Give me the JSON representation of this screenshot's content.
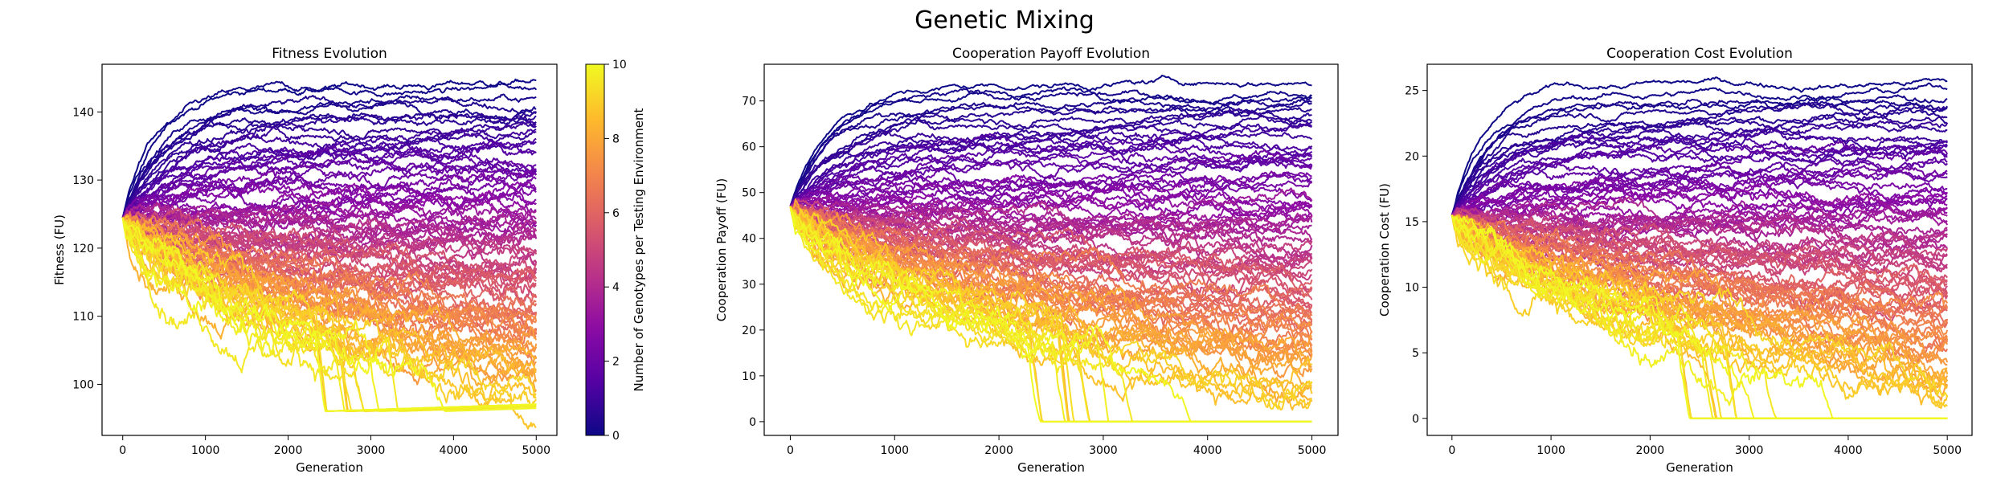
{
  "figure": {
    "title": "Genetic Mixing"
  },
  "colors": {
    "colormap": "plasma",
    "axes_edge": "#000000",
    "background": "#ffffff"
  },
  "chart_data": [
    {
      "type": "line",
      "title": "Fitness Evolution",
      "xlabel": "Generation",
      "ylabel": "Fitness (FU)",
      "xlim": [
        -250,
        5250
      ],
      "ylim": [
        92.5,
        147
      ],
      "xticks": [
        0,
        1000,
        2000,
        3000,
        4000,
        5000
      ],
      "yticks": [
        100,
        110,
        120,
        130,
        140
      ],
      "grid": false,
      "generations": 5000,
      "start_value": 124.5,
      "num_series": 100,
      "series_summary": {
        "color_low_end_value": 144,
        "color_high_end_value": 95,
        "low_color_rise_generation": 400,
        "collapse_floor": 96,
        "collapse_start_generation": 2300
      },
      "colorbar": {
        "label": "Number of Genotypes per Testing Environment",
        "range": [
          0,
          10
        ],
        "ticks": [
          0,
          2,
          4,
          6,
          8,
          10
        ]
      }
    },
    {
      "type": "line",
      "title": "Cooperation Payoff Evolution",
      "xlabel": "Generation",
      "ylabel": "Cooperation Payoff (FU)",
      "xlim": [
        -250,
        5250
      ],
      "ylim": [
        -3,
        78
      ],
      "xticks": [
        0,
        1000,
        2000,
        3000,
        4000,
        5000
      ],
      "yticks": [
        0,
        10,
        20,
        30,
        40,
        50,
        60,
        70
      ],
      "grid": false,
      "generations": 5000,
      "start_value": 47,
      "num_series": 100,
      "series_summary": {
        "color_low_end_value": 74,
        "color_high_end_value": 0,
        "low_color_rise_generation": 350,
        "collapse_floor": 0,
        "collapse_start_generation": 2250
      }
    },
    {
      "type": "line",
      "title": "Cooperation Cost Evolution",
      "xlabel": "Generation",
      "ylabel": "Cooperation Cost (FU)",
      "xlim": [
        -250,
        5250
      ],
      "ylim": [
        -1.3,
        27
      ],
      "xticks": [
        0,
        1000,
        2000,
        3000,
        4000,
        5000
      ],
      "yticks": [
        0,
        5,
        10,
        15,
        20,
        25
      ],
      "grid": false,
      "generations": 5000,
      "start_value": 15.5,
      "num_series": 100,
      "series_summary": {
        "color_low_end_value": 25.5,
        "color_high_end_value": 0,
        "low_color_rise_generation": 350,
        "collapse_floor": 0,
        "collapse_start_generation": 2250
      }
    }
  ]
}
